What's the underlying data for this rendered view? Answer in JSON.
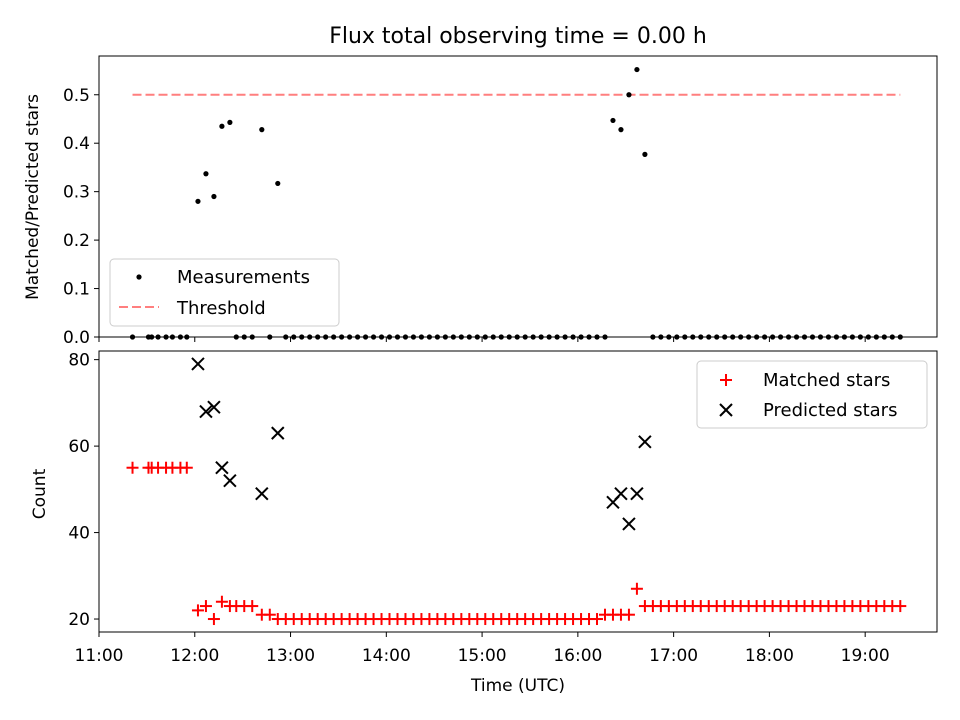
{
  "chart_data": [
    {
      "type": "scatter",
      "title": "Flux total observing time = 0.00 h",
      "ylabel": "Matched/Predicted stars",
      "xlabel": "",
      "xlim": [
        "11:00",
        "19:45"
      ],
      "ylim": [
        0.0,
        0.58
      ],
      "yticks": [
        "0.0",
        "0.1",
        "0.2",
        "0.3",
        "0.4",
        "0.5"
      ],
      "legend_position": "lower-left",
      "series": [
        {
          "name": "Measurements",
          "marker": "dot",
          "color": "#000000",
          "points": [
            [
              "11:21",
              0.0
            ],
            [
              "11:31",
              0.0
            ],
            [
              "11:33",
              0.0
            ],
            [
              "11:37",
              0.0
            ],
            [
              "11:42",
              0.0
            ],
            [
              "11:46",
              0.0
            ],
            [
              "11:51",
              0.0
            ],
            [
              "11:55",
              0.0
            ],
            [
              "12:02",
              0.28
            ],
            [
              "12:07",
              0.337
            ],
            [
              "12:12",
              0.29
            ],
            [
              "12:17",
              0.435
            ],
            [
              "12:22",
              0.443
            ],
            [
              "12:26",
              0.0
            ],
            [
              "12:31",
              0.0
            ],
            [
              "12:36",
              0.0
            ],
            [
              "12:42",
              0.428
            ],
            [
              "12:47",
              0.0
            ],
            [
              "12:52",
              0.317
            ],
            [
              "12:57",
              0.0
            ],
            [
              "13:02",
              0.0
            ],
            [
              "13:07",
              0.0
            ],
            [
              "13:12",
              0.0
            ],
            [
              "13:17",
              0.0
            ],
            [
              "13:22",
              0.0
            ],
            [
              "13:27",
              0.0
            ],
            [
              "13:32",
              0.0
            ],
            [
              "13:37",
              0.0
            ],
            [
              "13:42",
              0.0
            ],
            [
              "13:47",
              0.0
            ],
            [
              "13:52",
              0.0
            ],
            [
              "13:57",
              0.0
            ],
            [
              "14:02",
              0.0
            ],
            [
              "14:07",
              0.0
            ],
            [
              "14:12",
              0.0
            ],
            [
              "14:17",
              0.0
            ],
            [
              "14:22",
              0.0
            ],
            [
              "14:27",
              0.0
            ],
            [
              "14:32",
              0.0
            ],
            [
              "14:37",
              0.0
            ],
            [
              "14:42",
              0.0
            ],
            [
              "14:47",
              0.0
            ],
            [
              "14:52",
              0.0
            ],
            [
              "14:57",
              0.0
            ],
            [
              "15:02",
              0.0
            ],
            [
              "15:07",
              0.0
            ],
            [
              "15:12",
              0.0
            ],
            [
              "15:17",
              0.0
            ],
            [
              "15:22",
              0.0
            ],
            [
              "15:27",
              0.0
            ],
            [
              "15:32",
              0.0
            ],
            [
              "15:37",
              0.0
            ],
            [
              "15:42",
              0.0
            ],
            [
              "15:47",
              0.0
            ],
            [
              "15:52",
              0.0
            ],
            [
              "15:57",
              0.0
            ],
            [
              "16:02",
              0.0
            ],
            [
              "16:07",
              0.0
            ],
            [
              "16:12",
              0.0
            ],
            [
              "16:17",
              0.0
            ],
            [
              "16:22",
              0.447
            ],
            [
              "16:27",
              0.428
            ],
            [
              "16:32",
              0.5
            ],
            [
              "16:37",
              0.552
            ],
            [
              "16:42",
              0.377
            ],
            [
              "16:47",
              0.0
            ],
            [
              "16:52",
              0.0
            ],
            [
              "16:57",
              0.0
            ],
            [
              "17:02",
              0.0
            ],
            [
              "17:07",
              0.0
            ],
            [
              "17:12",
              0.0
            ],
            [
              "17:17",
              0.0
            ],
            [
              "17:22",
              0.0
            ],
            [
              "17:27",
              0.0
            ],
            [
              "17:32",
              0.0
            ],
            [
              "17:37",
              0.0
            ],
            [
              "17:42",
              0.0
            ],
            [
              "17:47",
              0.0
            ],
            [
              "17:52",
              0.0
            ],
            [
              "17:57",
              0.0
            ],
            [
              "18:02",
              0.0
            ],
            [
              "18:07",
              0.0
            ],
            [
              "18:12",
              0.0
            ],
            [
              "18:17",
              0.0
            ],
            [
              "18:22",
              0.0
            ],
            [
              "18:27",
              0.0
            ],
            [
              "18:32",
              0.0
            ],
            [
              "18:37",
              0.0
            ],
            [
              "18:42",
              0.0
            ],
            [
              "18:47",
              0.0
            ],
            [
              "18:52",
              0.0
            ],
            [
              "18:57",
              0.0
            ],
            [
              "19:02",
              0.0
            ],
            [
              "19:07",
              0.0
            ],
            [
              "19:12",
              0.0
            ],
            [
              "19:17",
              0.0
            ],
            [
              "19:22",
              0.0
            ]
          ]
        },
        {
          "name": "Threshold",
          "marker": "dashed-line",
          "color": "#ff7f7f",
          "points": [
            [
              "11:21",
              0.5
            ],
            [
              "19:22",
              0.5
            ]
          ]
        }
      ]
    },
    {
      "type": "scatter",
      "title": "",
      "ylabel": "Count",
      "xlabel": "Time (UTC)",
      "xlim": [
        "11:00",
        "19:45"
      ],
      "ylim": [
        17,
        82
      ],
      "yticks": [
        "20",
        "40",
        "60",
        "80"
      ],
      "xticks": [
        "11:00",
        "12:00",
        "13:00",
        "14:00",
        "15:00",
        "16:00",
        "17:00",
        "18:00",
        "19:00"
      ],
      "legend_position": "upper-right",
      "series": [
        {
          "name": "Matched stars",
          "marker": "plus",
          "color": "#ff0000",
          "points": [
            [
              "11:21",
              55
            ],
            [
              "11:31",
              55
            ],
            [
              "11:33",
              55
            ],
            [
              "11:37",
              55
            ],
            [
              "11:42",
              55
            ],
            [
              "11:46",
              55
            ],
            [
              "11:51",
              55
            ],
            [
              "11:55",
              55
            ],
            [
              "12:02",
              22
            ],
            [
              "12:07",
              23
            ],
            [
              "12:12",
              20
            ],
            [
              "12:17",
              24
            ],
            [
              "12:22",
              23
            ],
            [
              "12:26",
              23
            ],
            [
              "12:31",
              23
            ],
            [
              "12:36",
              23
            ],
            [
              "12:42",
              21
            ],
            [
              "12:47",
              21
            ],
            [
              "12:52",
              20
            ],
            [
              "12:57",
              20
            ],
            [
              "13:02",
              20
            ],
            [
              "13:07",
              20
            ],
            [
              "13:12",
              20
            ],
            [
              "13:17",
              20
            ],
            [
              "13:22",
              20
            ],
            [
              "13:27",
              20
            ],
            [
              "13:32",
              20
            ],
            [
              "13:37",
              20
            ],
            [
              "13:42",
              20
            ],
            [
              "13:47",
              20
            ],
            [
              "13:52",
              20
            ],
            [
              "13:57",
              20
            ],
            [
              "14:02",
              20
            ],
            [
              "14:07",
              20
            ],
            [
              "14:12",
              20
            ],
            [
              "14:17",
              20
            ],
            [
              "14:22",
              20
            ],
            [
              "14:27",
              20
            ],
            [
              "14:32",
              20
            ],
            [
              "14:37",
              20
            ],
            [
              "14:42",
              20
            ],
            [
              "14:47",
              20
            ],
            [
              "14:52",
              20
            ],
            [
              "14:57",
              20
            ],
            [
              "15:02",
              20
            ],
            [
              "15:07",
              20
            ],
            [
              "15:12",
              20
            ],
            [
              "15:17",
              20
            ],
            [
              "15:22",
              20
            ],
            [
              "15:27",
              20
            ],
            [
              "15:32",
              20
            ],
            [
              "15:37",
              20
            ],
            [
              "15:42",
              20
            ],
            [
              "15:47",
              20
            ],
            [
              "15:52",
              20
            ],
            [
              "15:57",
              20
            ],
            [
              "16:02",
              20
            ],
            [
              "16:07",
              20
            ],
            [
              "16:12",
              20
            ],
            [
              "16:17",
              21
            ],
            [
              "16:22",
              21
            ],
            [
              "16:27",
              21
            ],
            [
              "16:32",
              21
            ],
            [
              "16:37",
              27
            ],
            [
              "16:42",
              23
            ],
            [
              "16:47",
              23
            ],
            [
              "16:52",
              23
            ],
            [
              "16:57",
              23
            ],
            [
              "17:02",
              23
            ],
            [
              "17:07",
              23
            ],
            [
              "17:12",
              23
            ],
            [
              "17:17",
              23
            ],
            [
              "17:22",
              23
            ],
            [
              "17:27",
              23
            ],
            [
              "17:32",
              23
            ],
            [
              "17:37",
              23
            ],
            [
              "17:42",
              23
            ],
            [
              "17:47",
              23
            ],
            [
              "17:52",
              23
            ],
            [
              "17:57",
              23
            ],
            [
              "18:02",
              23
            ],
            [
              "18:07",
              23
            ],
            [
              "18:12",
              23
            ],
            [
              "18:17",
              23
            ],
            [
              "18:22",
              23
            ],
            [
              "18:27",
              23
            ],
            [
              "18:32",
              23
            ],
            [
              "18:37",
              23
            ],
            [
              "18:42",
              23
            ],
            [
              "18:47",
              23
            ],
            [
              "18:52",
              23
            ],
            [
              "18:57",
              23
            ],
            [
              "19:02",
              23
            ],
            [
              "19:07",
              23
            ],
            [
              "19:12",
              23
            ],
            [
              "19:17",
              23
            ],
            [
              "19:22",
              23
            ]
          ]
        },
        {
          "name": "Predicted stars",
          "marker": "x",
          "color": "#000000",
          "points": [
            [
              "12:02",
              79
            ],
            [
              "12:07",
              68
            ],
            [
              "12:12",
              69
            ],
            [
              "12:17",
              55
            ],
            [
              "12:22",
              52
            ],
            [
              "12:42",
              49
            ],
            [
              "12:52",
              63
            ],
            [
              "16:22",
              47
            ],
            [
              "16:27",
              49
            ],
            [
              "16:32",
              42
            ],
            [
              "16:37",
              49
            ],
            [
              "16:42",
              61
            ]
          ]
        }
      ]
    }
  ]
}
